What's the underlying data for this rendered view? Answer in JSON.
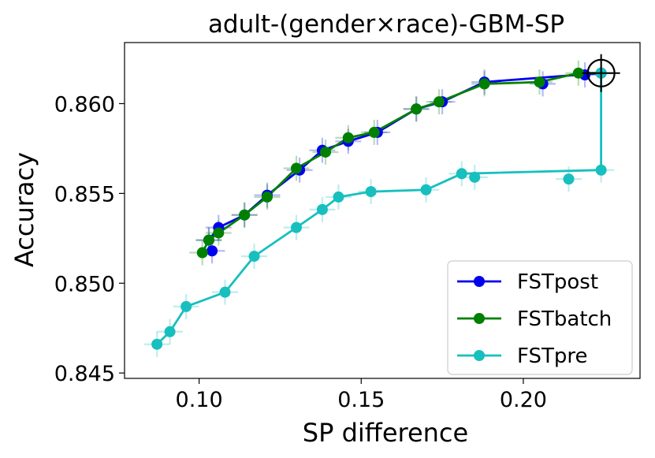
{
  "chart_data": {
    "type": "line",
    "title": "adult-(gender×race)-GBM-SP",
    "xlabel": "SP difference",
    "ylabel": "Accuracy",
    "xlim": [
      0.077,
      0.236
    ],
    "ylim": [
      0.8447,
      0.8634
    ],
    "xticks": [
      0.1,
      0.15,
      0.2
    ],
    "xtick_labels": [
      "0.10",
      "0.15",
      "0.20"
    ],
    "yticks": [
      0.845,
      0.85,
      0.855,
      0.86
    ],
    "ytick_labels": [
      "0.845",
      "0.850",
      "0.855",
      "0.860"
    ],
    "legend_position": "lower-right",
    "series": [
      {
        "name": "FSTpost",
        "color": "#0000ee",
        "x": [
          0.104,
          0.103,
          0.106,
          0.114,
          0.121,
          0.131,
          0.138,
          0.146,
          0.155,
          0.167,
          0.175,
          0.188,
          0.206,
          0.219,
          0.224
        ],
        "y": [
          0.8518,
          0.8524,
          0.8531,
          0.8538,
          0.8549,
          0.8563,
          0.8574,
          0.8579,
          0.8584,
          0.8597,
          0.8601,
          0.8612,
          0.8611,
          0.8616,
          0.8617
        ],
        "err_x": 0.004,
        "err_y": 0.0007
      },
      {
        "name": "FSTbatch",
        "color": "#008000",
        "x": [
          0.101,
          0.103,
          0.106,
          0.114,
          0.121,
          0.13,
          0.139,
          0.146,
          0.154,
          0.167,
          0.174,
          0.188,
          0.205,
          0.217,
          0.224
        ],
        "y": [
          0.8517,
          0.8524,
          0.8528,
          0.8538,
          0.8548,
          0.8564,
          0.8573,
          0.8581,
          0.8584,
          0.8597,
          0.8601,
          0.8611,
          0.8612,
          0.8617,
          0.8617
        ],
        "err_x": 0.004,
        "err_y": 0.0007
      },
      {
        "name": "FSTpre",
        "color": "#17bfbf",
        "x": [
          0.087,
          0.091,
          0.096,
          0.108,
          0.117,
          0.13,
          0.138,
          0.143,
          0.153,
          0.17,
          0.181,
          0.185,
          0.214,
          0.224,
          0.224
        ],
        "y": [
          0.8466,
          0.8473,
          0.8487,
          0.8495,
          0.8515,
          0.8531,
          0.8541,
          0.8548,
          0.8551,
          0.8552,
          0.8561,
          0.8559,
          0.8558,
          0.8563,
          0.8617
        ],
        "err_x": 0.004,
        "err_y": 0.0007
      }
    ],
    "line_points": {
      "FSTpost": [
        [
          0.103,
          0.8524
        ],
        [
          0.106,
          0.8531
        ],
        [
          0.114,
          0.8538
        ],
        [
          0.121,
          0.8549
        ],
        [
          0.131,
          0.8563
        ],
        [
          0.138,
          0.8574
        ],
        [
          0.146,
          0.8579
        ],
        [
          0.155,
          0.8584
        ],
        [
          0.167,
          0.8597
        ],
        [
          0.175,
          0.8601
        ],
        [
          0.188,
          0.8612
        ],
        [
          0.224,
          0.8617
        ]
      ],
      "FSTbatch": [
        [
          0.101,
          0.8517
        ],
        [
          0.103,
          0.8524
        ],
        [
          0.106,
          0.8528
        ],
        [
          0.114,
          0.8538
        ],
        [
          0.121,
          0.8548
        ],
        [
          0.13,
          0.8564
        ],
        [
          0.139,
          0.8573
        ],
        [
          0.146,
          0.8581
        ],
        [
          0.154,
          0.8584
        ],
        [
          0.167,
          0.8597
        ],
        [
          0.174,
          0.8601
        ],
        [
          0.188,
          0.8611
        ],
        [
          0.205,
          0.8612
        ],
        [
          0.217,
          0.8617
        ],
        [
          0.224,
          0.8617
        ]
      ],
      "FSTpre": [
        [
          0.087,
          0.8466
        ],
        [
          0.091,
          0.8473
        ],
        [
          0.096,
          0.8487
        ],
        [
          0.108,
          0.8495
        ],
        [
          0.117,
          0.8515
        ],
        [
          0.13,
          0.8531
        ],
        [
          0.138,
          0.8541
        ],
        [
          0.143,
          0.8548
        ],
        [
          0.153,
          0.8551
        ],
        [
          0.17,
          0.8552
        ],
        [
          0.181,
          0.8561
        ],
        [
          0.224,
          0.8563
        ],
        [
          0.224,
          0.8617
        ]
      ]
    },
    "highlight": {
      "x": 0.224,
      "y": 0.8617,
      "marker": "circled-crosshair"
    }
  }
}
